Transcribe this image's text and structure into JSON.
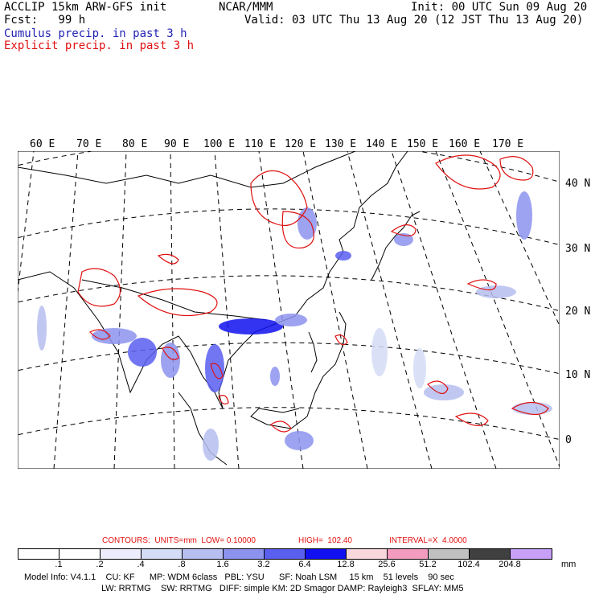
{
  "header": {
    "title": "ACCLIP 15km ARW-GFS init",
    "fcst": "Fcst:   99 h",
    "center": "NCAR/MMM",
    "init": "Init: 00 UTC Sun 09 Aug 20",
    "valid": "Valid: 03 UTC Thu 13 Aug 20 (12 JST Thu 13 Aug 20)",
    "cumulus": "Cumulus precip. in past 3 h",
    "explicit": "Explicit precip. in past 3 h"
  },
  "longitudes": [
    "60 E",
    "70 E",
    "80 E",
    "90 E",
    "100 E",
    "110 E",
    "120 E",
    "130 E",
    "140 E",
    "150 E",
    "160 E",
    "170 E"
  ],
  "latitudes": [
    "40 N",
    "30 N",
    "20 N",
    "10 N",
    "0"
  ],
  "contours": {
    "label": "CONTOURS:  UNITS=mm  LOW= 0.10000",
    "high": "HIGH=  102.40",
    "interval": "INTERVAL=X  4.0000"
  },
  "colorbar": {
    "colors": [
      "#ffffff",
      "#ffffff",
      "#ececfc",
      "#d4dcf6",
      "#b6bff0",
      "#8c93ee",
      "#5a5ff0",
      "#1010f0",
      "#f8d8dc",
      "#f49cc0",
      "#c0c0c0",
      "#404040",
      "#c8a0f8"
    ],
    "ticks": [
      ".1",
      ".2",
      ".4",
      ".8",
      "1.6",
      "3.2",
      "6.4",
      "12.8",
      "25.6",
      "51.2",
      "102.4",
      "204.8"
    ],
    "unit": "mm"
  },
  "model_info": {
    "line1": "Model Info: V4.1.1    CU: KF      MP: WDM 6class   PBL: YSU      SF: Noah LSM     15 km    51 levels    90 sec",
    "line2": "LW: RRTMG    SW: RRTMG   DIFF: simple KM: 2D Smagor DAMP: Rayleigh3  SFLAY: MM5"
  }
}
